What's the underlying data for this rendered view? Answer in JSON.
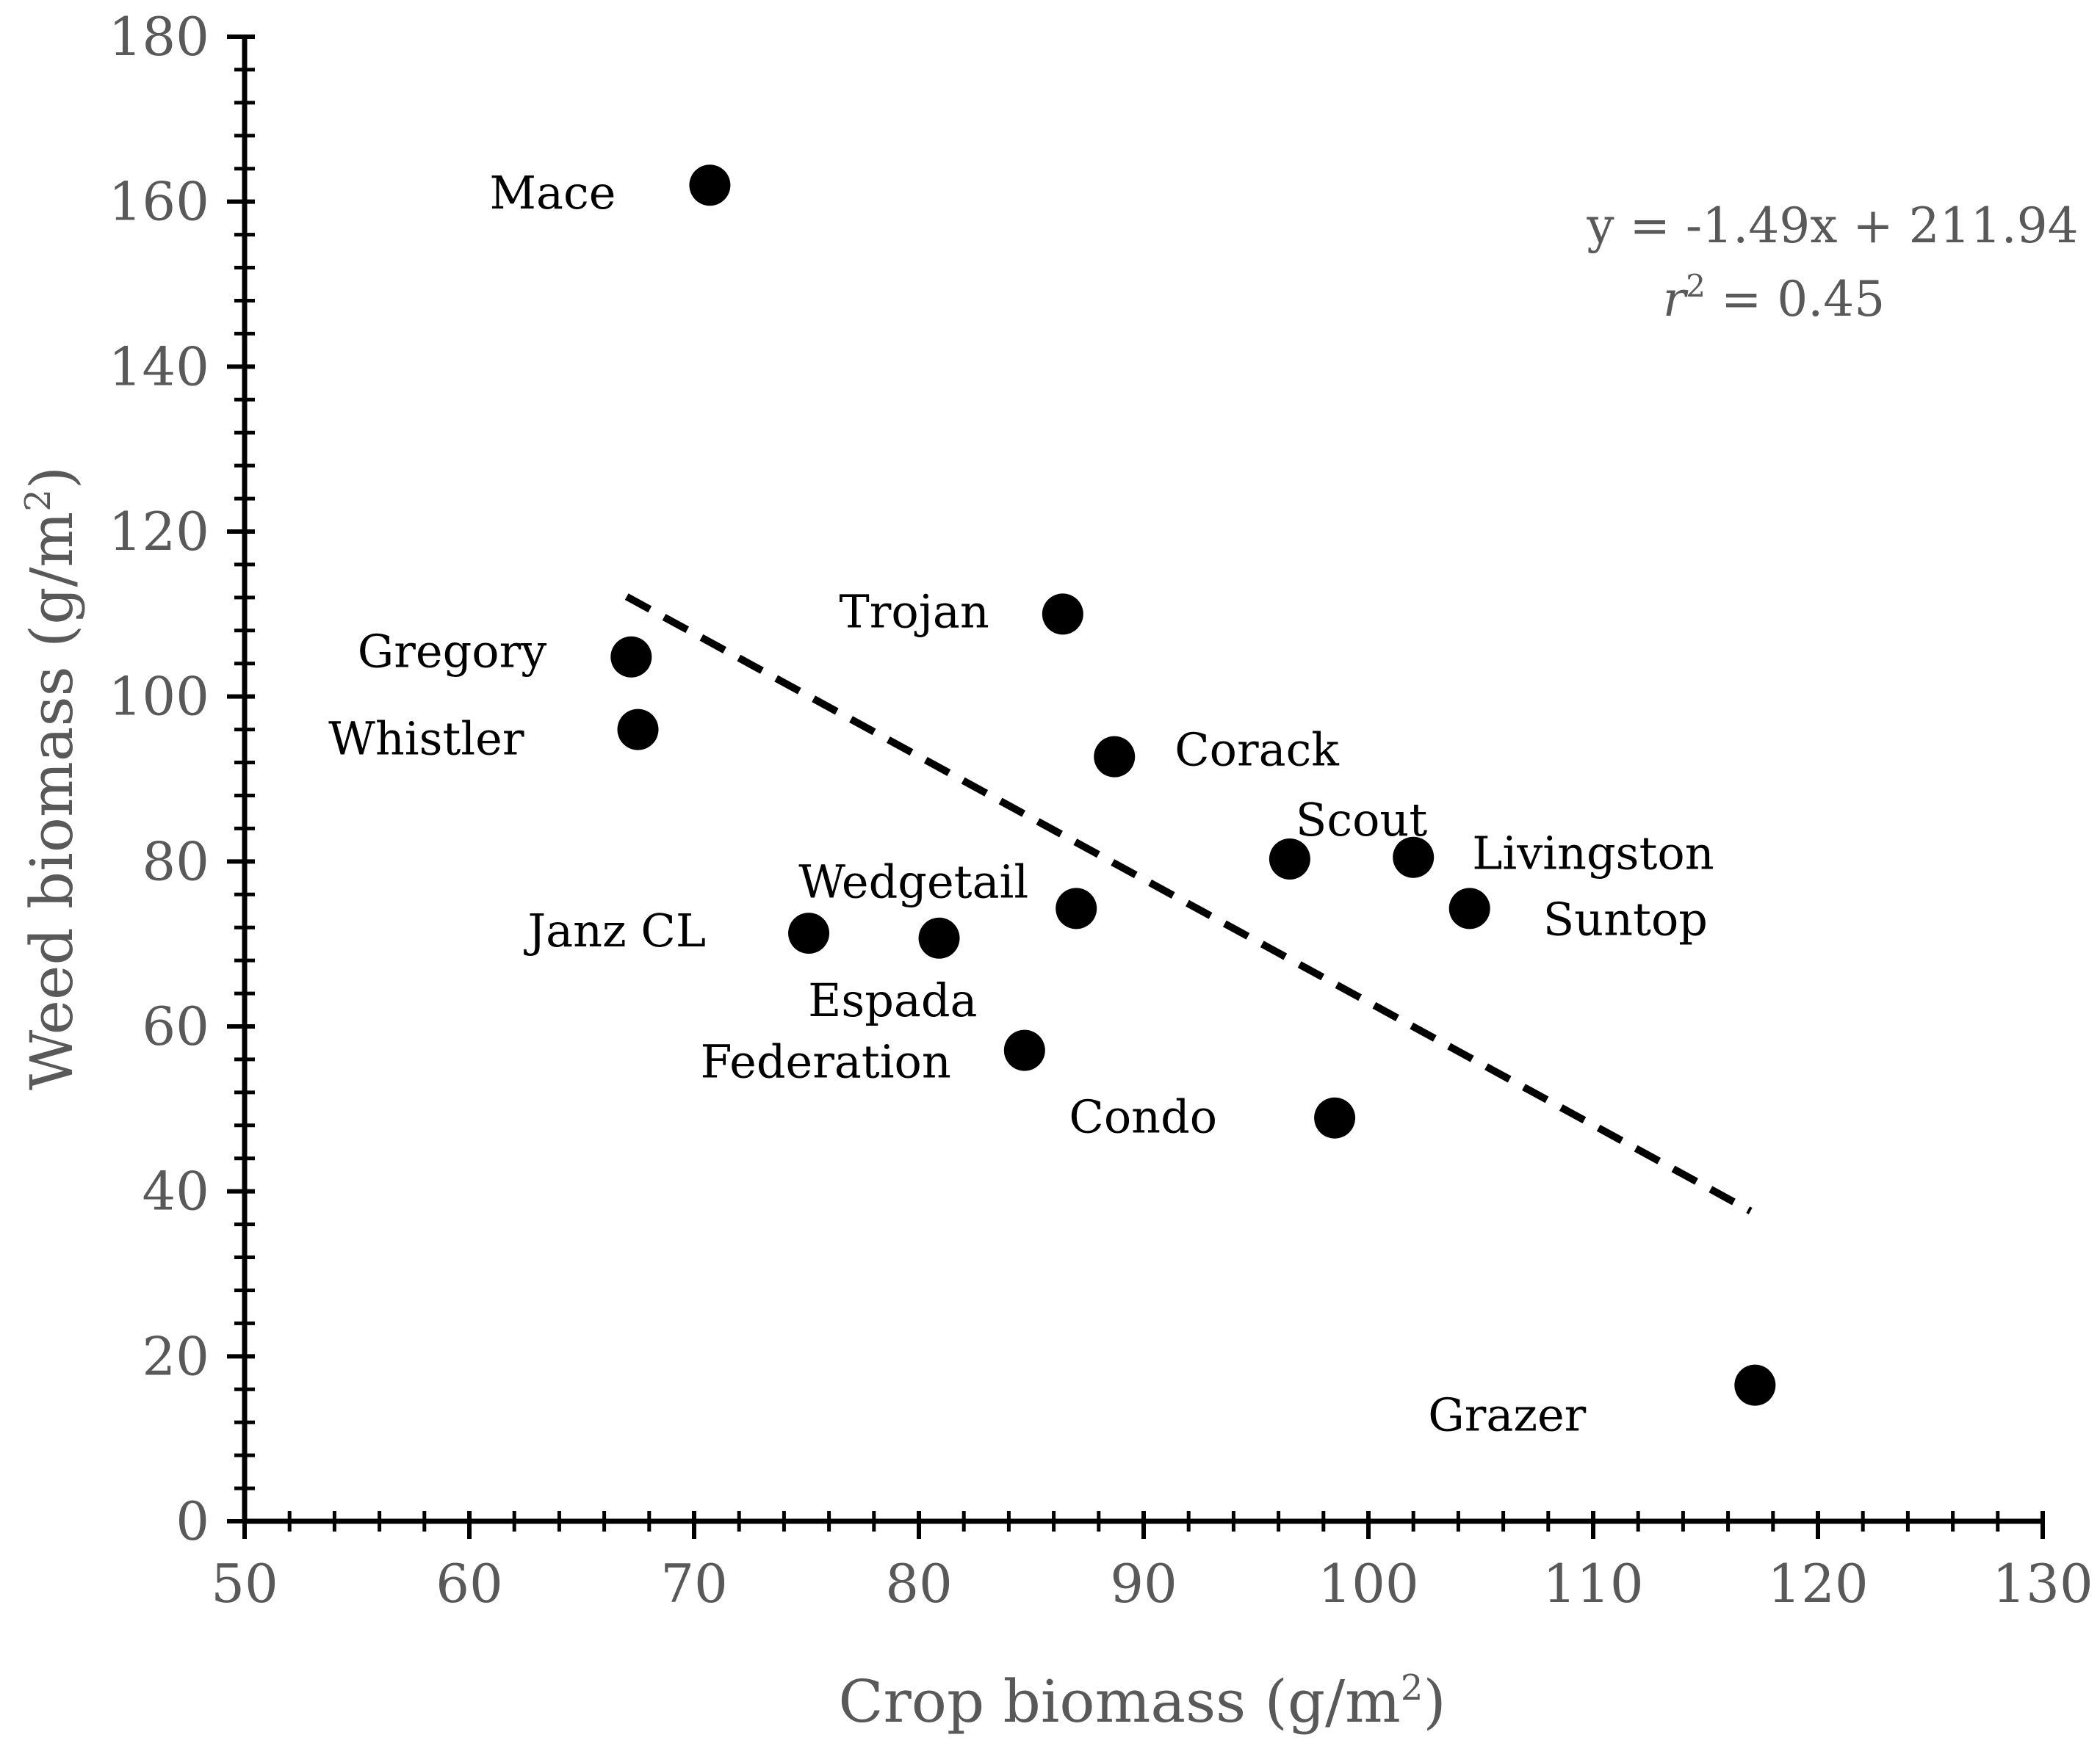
{
  "chart_data": {
    "type": "scatter",
    "xlabel": "Crop biomass (g/m",
    "xlabel_sup": "2",
    "xlabel_end": ")",
    "ylabel": "Weed biomass (g/m",
    "ylabel_sup": "2",
    "ylabel_end": ")",
    "xlim": [
      50,
      130
    ],
    "ylim": [
      0,
      180
    ],
    "x_ticks": [
      50,
      60,
      70,
      80,
      90,
      100,
      110,
      120,
      130
    ],
    "y_ticks": [
      0,
      20,
      40,
      60,
      80,
      100,
      120,
      140,
      160,
      180
    ],
    "grid": false,
    "point_color": "#000000",
    "points": [
      {
        "name": "Mace",
        "x": 70.7,
        "y": 162
      },
      {
        "name": "Trojan",
        "x": 86.4,
        "y": 110
      },
      {
        "name": "Gregory",
        "x": 67.2,
        "y": 104.8
      },
      {
        "name": "Whistler",
        "x": 67.5,
        "y": 96
      },
      {
        "name": "Corack",
        "x": 88.7,
        "y": 92.7
      },
      {
        "name": "Scout",
        "x": 96.5,
        "y": 80.3
      },
      {
        "name": "Livingston",
        "x": 102,
        "y": 80.5
      },
      {
        "name": "Suntop",
        "x": 104.5,
        "y": 74.3
      },
      {
        "name": "Wedgetail",
        "x": 87,
        "y": 74.3
      },
      {
        "name": "Janz CL",
        "x": 75.1,
        "y": 71.3
      },
      {
        "name": "Espada",
        "x": 80.9,
        "y": 70.7
      },
      {
        "name": "Federation",
        "x": 84.7,
        "y": 57.1
      },
      {
        "name": "Condo",
        "x": 98.5,
        "y": 48.9
      },
      {
        "name": "Grazer",
        "x": 117.2,
        "y": 16.5
      }
    ],
    "trendline": {
      "slope": -1.49,
      "intercept": 211.94,
      "x_start": 67,
      "x_end": 117,
      "style": "dashed",
      "equation": "y = -1.49x + 211.94",
      "r2_var": "r",
      "r2_sup": "2",
      "r2_rest": " = 0.45"
    }
  }
}
